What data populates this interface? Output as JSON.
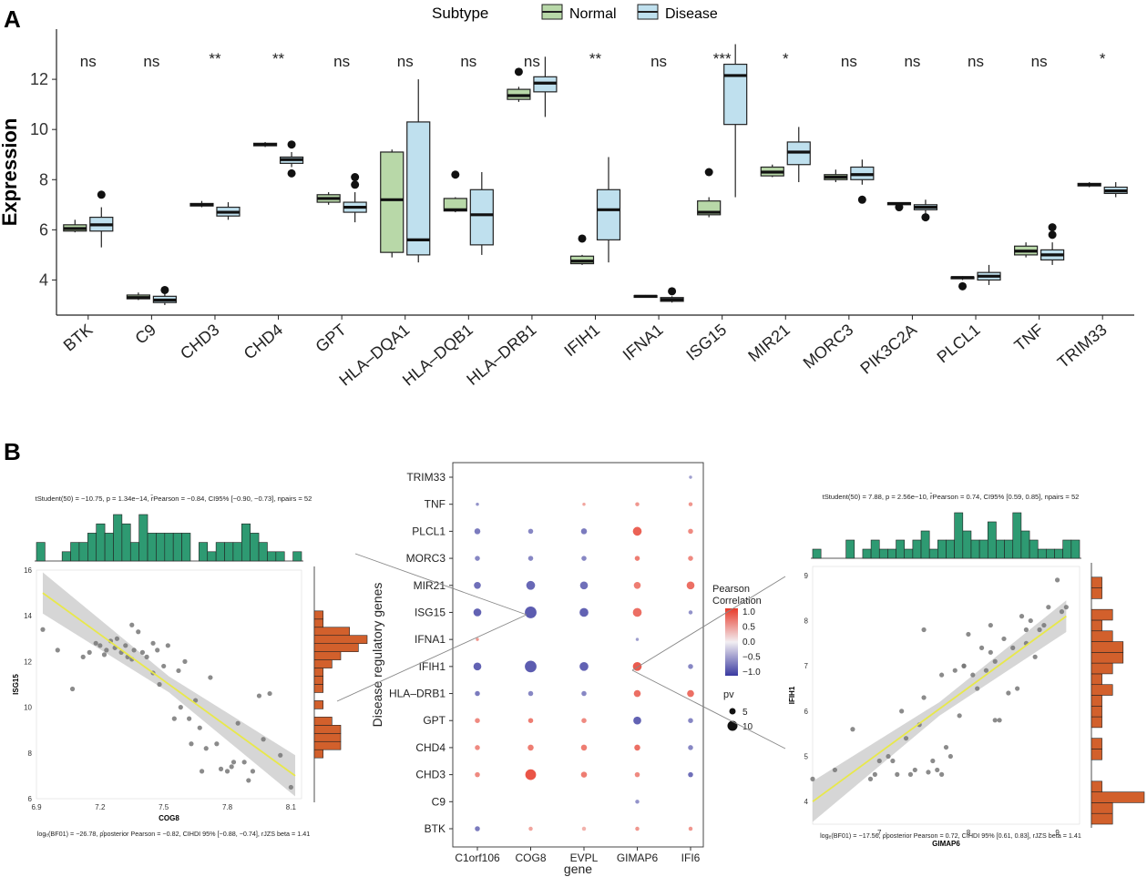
{
  "panel_labels": [
    "A",
    "B"
  ],
  "colors": {
    "normal": "#b8d8a8",
    "disease": "#bfe0ee",
    "hist_top": "#2e9a72",
    "hist_side": "#d2602c",
    "fit_line": "#e8e84a",
    "ci_band": "#c8c8c8",
    "points": "#777777",
    "pos_corr": "#e83a2a",
    "neg_corr": "#4a4aa8"
  },
  "chart_data": [
    {
      "type": "box",
      "panel": "A",
      "legend_title": "Subtype",
      "legend_entries": [
        "Normal",
        "Disease"
      ],
      "ylabel": "Expression",
      "ylim": [
        2.6,
        14
      ],
      "yticks": [
        4,
        6,
        8,
        10,
        12
      ],
      "genes": [
        "BTK",
        "C9",
        "CHD3",
        "CHD4",
        "GPT",
        "HLA–DQA1",
        "HLA–DQB1",
        "HLA–DRB1",
        "IFIH1",
        "IFNA1",
        "ISG15",
        "MIR21",
        "MORC3",
        "PIK3C2A",
        "PLCL1",
        "TNF",
        "TRIM33"
      ],
      "significance": [
        "ns",
        "ns",
        "**",
        "**",
        "ns",
        "ns",
        "ns",
        "ns",
        "**",
        "ns",
        "***",
        "*",
        "ns",
        "ns",
        "ns",
        "ns",
        "*"
      ],
      "series": [
        {
          "name": "Normal",
          "boxes": [
            {
              "min": 5.9,
              "q1": 5.95,
              "med": 6.05,
              "q3": 6.2,
              "max": 6.4,
              "out": []
            },
            {
              "min": 3.2,
              "q1": 3.25,
              "med": 3.3,
              "q3": 3.4,
              "max": 3.5,
              "out": []
            },
            {
              "min": 6.9,
              "q1": 6.95,
              "med": 7.0,
              "q3": 7.05,
              "max": 7.15,
              "out": []
            },
            {
              "min": 9.3,
              "q1": 9.35,
              "med": 9.4,
              "q3": 9.45,
              "max": 9.5,
              "out": []
            },
            {
              "min": 7.0,
              "q1": 7.1,
              "med": 7.25,
              "q3": 7.4,
              "max": 7.5,
              "out": []
            },
            {
              "min": 4.9,
              "q1": 5.1,
              "med": 7.2,
              "q3": 9.1,
              "max": 9.2,
              "out": []
            },
            {
              "min": 6.7,
              "q1": 6.75,
              "med": 6.8,
              "q3": 7.25,
              "max": 7.3,
              "out": [
                8.2
              ]
            },
            {
              "min": 11.1,
              "q1": 11.2,
              "med": 11.35,
              "q3": 11.6,
              "max": 11.7,
              "out": [
                12.3
              ]
            },
            {
              "min": 4.6,
              "q1": 4.65,
              "med": 4.75,
              "q3": 4.95,
              "max": 5.0,
              "out": [
                5.65
              ]
            },
            {
              "min": 3.3,
              "q1": 3.32,
              "med": 3.35,
              "q3": 3.38,
              "max": 3.4,
              "out": []
            },
            {
              "min": 6.5,
              "q1": 6.6,
              "med": 6.7,
              "q3": 7.15,
              "max": 7.3,
              "out": [
                8.3
              ]
            },
            {
              "min": 8.1,
              "q1": 8.15,
              "med": 8.3,
              "q3": 8.5,
              "max": 8.6,
              "out": []
            },
            {
              "min": 7.9,
              "q1": 8.0,
              "med": 8.1,
              "q3": 8.2,
              "max": 8.4,
              "out": []
            },
            {
              "min": 6.95,
              "q1": 7.0,
              "med": 7.05,
              "q3": 7.08,
              "max": 7.1,
              "out": [
                6.9
              ]
            },
            {
              "min": 4.0,
              "q1": 4.05,
              "med": 4.1,
              "q3": 4.12,
              "max": 4.15,
              "out": [
                3.75
              ]
            },
            {
              "min": 4.9,
              "q1": 5.0,
              "med": 5.15,
              "q3": 5.35,
              "max": 5.5,
              "out": []
            },
            {
              "min": 7.7,
              "q1": 7.75,
              "med": 7.8,
              "q3": 7.85,
              "max": 7.9,
              "out": []
            }
          ]
        },
        {
          "name": "Disease",
          "boxes": [
            {
              "min": 5.3,
              "q1": 5.95,
              "med": 6.2,
              "q3": 6.5,
              "max": 6.9,
              "out": [
                7.4
              ]
            },
            {
              "min": 3.0,
              "q1": 3.1,
              "med": 3.2,
              "q3": 3.35,
              "max": 3.45,
              "out": [
                3.6
              ]
            },
            {
              "min": 6.4,
              "q1": 6.55,
              "med": 6.7,
              "q3": 6.9,
              "max": 7.1,
              "out": []
            },
            {
              "min": 8.5,
              "q1": 8.65,
              "med": 8.8,
              "q3": 8.9,
              "max": 9.1,
              "out": [
                9.4,
                8.25
              ]
            },
            {
              "min": 6.3,
              "q1": 6.7,
              "med": 6.9,
              "q3": 7.1,
              "max": 7.5,
              "out": [
                8.1,
                7.8
              ]
            },
            {
              "min": 4.7,
              "q1": 5.0,
              "med": 5.6,
              "q3": 10.3,
              "max": 12.0,
              "out": []
            },
            {
              "min": 5.0,
              "q1": 5.4,
              "med": 6.6,
              "q3": 7.6,
              "max": 8.3,
              "out": []
            },
            {
              "min": 10.5,
              "q1": 11.5,
              "med": 11.85,
              "q3": 12.1,
              "max": 12.9,
              "out": []
            },
            {
              "min": 4.7,
              "q1": 5.6,
              "med": 6.8,
              "q3": 7.6,
              "max": 8.9,
              "out": []
            },
            {
              "min": 3.1,
              "q1": 3.15,
              "med": 3.22,
              "q3": 3.3,
              "max": 3.35,
              "out": [
                3.55
              ]
            },
            {
              "min": 7.3,
              "q1": 10.2,
              "med": 12.15,
              "q3": 12.6,
              "max": 13.4,
              "out": []
            },
            {
              "min": 7.9,
              "q1": 8.6,
              "med": 9.1,
              "q3": 9.5,
              "max": 10.1,
              "out": []
            },
            {
              "min": 7.8,
              "q1": 8.0,
              "med": 8.2,
              "q3": 8.5,
              "max": 8.8,
              "out": [
                7.2
              ]
            },
            {
              "min": 6.6,
              "q1": 6.8,
              "med": 6.9,
              "q3": 7.0,
              "max": 7.2,
              "out": [
                6.5
              ]
            },
            {
              "min": 3.8,
              "q1": 4.0,
              "med": 4.15,
              "q3": 4.3,
              "max": 4.6,
              "out": []
            },
            {
              "min": 4.6,
              "q1": 4.8,
              "med": 5.0,
              "q3": 5.2,
              "max": 5.5,
              "out": [
                6.1,
                5.8
              ]
            },
            {
              "min": 7.3,
              "q1": 7.45,
              "med": 7.55,
              "q3": 7.7,
              "max": 7.9,
              "out": []
            }
          ]
        }
      ]
    },
    {
      "type": "scatter",
      "panel": "B-left",
      "subtitle": "tStudent(50) = −10.75, p = 1.34e−14, r̂Pearson = −0.84, CI95% [−0.90, −0.73], npairs = 52",
      "footer": "logₑ(BF01) = −26.78, ρ̂posterior Pearson = −0.82, CIHDI 95% [−0.88, −0.74], rJZS beta = 1.41",
      "xlabel": "COG8",
      "ylabel": "ISG15",
      "xlim": [
        6.9,
        8.15
      ],
      "ylim": [
        6,
        16
      ],
      "xticks": [
        "6.9",
        "7.2",
        "7.5",
        "7.8",
        "8.1"
      ],
      "yticks": [
        "6",
        "8",
        "10",
        "12",
        "14",
        "16"
      ],
      "fit": {
        "x": [
          6.93,
          8.12
        ],
        "y": [
          15.0,
          7.0
        ]
      },
      "ci_half_width": [
        0.9,
        0.35,
        0.9
      ],
      "points_x": [
        6.93,
        7.0,
        7.07,
        7.12,
        7.15,
        7.18,
        7.2,
        7.22,
        7.23,
        7.25,
        7.27,
        7.28,
        7.3,
        7.32,
        7.33,
        7.35,
        7.36,
        7.38,
        7.4,
        7.42,
        7.45,
        7.47,
        7.48,
        7.5,
        7.52,
        7.55,
        7.57,
        7.58,
        7.6,
        7.63,
        7.65,
        7.67,
        7.68,
        7.7,
        7.72,
        7.75,
        7.77,
        7.8,
        7.82,
        7.83,
        7.85,
        7.88,
        7.9,
        7.92,
        7.95,
        7.97,
        8.0,
        8.05,
        8.1,
        7.45,
        7.62,
        7.35
      ],
      "points_y": [
        13.4,
        12.5,
        10.8,
        12.2,
        12.4,
        12.8,
        12.7,
        12.3,
        12.5,
        12.9,
        12.6,
        13.0,
        12.4,
        12.7,
        12.2,
        12.1,
        12.5,
        13.3,
        12.4,
        12.2,
        11.5,
        12.5,
        11.0,
        11.8,
        12.7,
        9.5,
        11.6,
        10.0,
        12.0,
        8.4,
        10.3,
        9.1,
        7.2,
        8.2,
        11.3,
        8.4,
        7.3,
        7.2,
        7.4,
        7.6,
        9.3,
        7.6,
        6.8,
        7.2,
        10.5,
        8.6,
        10.6,
        7.9,
        6.5,
        12.8,
        9.5,
        13.6
      ],
      "hist_top": [
        2,
        0,
        0,
        1,
        2,
        2,
        3,
        4,
        3,
        5,
        4,
        2,
        5,
        3,
        3,
        3,
        3,
        3,
        0,
        2,
        1,
        2,
        2,
        2,
        4,
        3,
        2,
        1,
        1,
        0,
        1
      ],
      "hist_side": [
        0,
        0,
        0,
        0,
        0,
        1,
        3,
        3,
        3,
        2,
        0,
        1,
        0,
        1,
        1,
        1,
        2,
        3,
        5,
        6,
        4,
        1,
        1,
        0,
        0,
        0,
        0,
        0
      ]
    },
    {
      "type": "dot-matrix",
      "panel": "B-middle",
      "xlabel": "gene",
      "ylabel": "Disease regulatory genes",
      "x": [
        "C1orf106",
        "COG8",
        "EVPL",
        "GIMAP6",
        "IFI6"
      ],
      "y": [
        "BTK",
        "C9",
        "CHD3",
        "CHD4",
        "GPT",
        "HLA–DRB1",
        "IFIH1",
        "IFNA1",
        "ISG15",
        "MIR21",
        "MORC3",
        "PLCL1",
        "TNF",
        "TRIM33"
      ],
      "corr": [
        [
          -0.6,
          0.2,
          0.1,
          0.3,
          0.3
        ],
        [
          null,
          null,
          null,
          -0.4,
          null
        ],
        [
          0.4,
          0.8,
          0.5,
          0.4,
          -0.7
        ],
        [
          0.4,
          0.5,
          0.5,
          0.6,
          -0.5
        ],
        [
          0.4,
          0.5,
          0.4,
          -0.8,
          -0.5
        ],
        [
          -0.6,
          -0.5,
          -0.5,
          0.6,
          0.6
        ],
        [
          -0.8,
          -0.85,
          -0.8,
          0.75,
          -0.5
        ],
        [
          0.3,
          null,
          null,
          -0.3,
          null
        ],
        [
          -0.8,
          -0.85,
          -0.8,
          0.6,
          -0.4
        ],
        [
          -0.7,
          -0.75,
          -0.7,
          0.5,
          0.6
        ],
        [
          -0.5,
          -0.5,
          -0.5,
          0.5,
          0.4
        ],
        [
          -0.6,
          -0.5,
          -0.6,
          0.7,
          0.4
        ],
        [
          -0.4,
          null,
          0.2,
          0.3,
          0.3
        ],
        [
          null,
          null,
          null,
          null,
          -0.3
        ]
      ],
      "pv": [
        [
          3,
          2,
          2,
          2,
          2
        ],
        [
          null,
          null,
          null,
          2,
          null
        ],
        [
          3,
          9,
          4,
          3,
          3
        ],
        [
          3,
          4,
          4,
          4,
          3
        ],
        [
          3,
          3,
          3,
          6,
          3
        ],
        [
          3,
          3,
          3,
          5,
          5
        ],
        [
          6,
          10,
          7,
          7,
          3
        ],
        [
          1,
          null,
          null,
          1,
          null
        ],
        [
          6,
          10,
          7,
          7,
          2
        ],
        [
          5,
          7,
          6,
          5,
          6
        ],
        [
          3,
          3,
          3,
          3,
          3
        ],
        [
          4,
          3,
          4,
          7,
          3
        ],
        [
          1,
          null,
          1,
          2,
          2
        ],
        [
          null,
          null,
          null,
          null,
          1
        ]
      ],
      "legend_title": "Pearson Correlation",
      "legend_ticks": [
        "1.0",
        "0.5",
        "0.0",
        "−0.5",
        "−1.0"
      ],
      "size_title": "pv",
      "size_ticks": [
        "5",
        "10"
      ]
    },
    {
      "type": "scatter",
      "panel": "B-right",
      "subtitle": "tStudent(50) = 7.88, p = 2.56e−10, r̂Pearson = 0.74, CI95% [0.59, 0.85], npairs = 52",
      "footer": "logₑ(BF01) = −17.56, ρ̂posterior Pearson = 0.72, CIHDI 95% [0.61, 0.83], rJZS beta = 1.41",
      "xlabel": "GIMAP6",
      "ylabel": "IFIH1",
      "xlim": [
        6.25,
        9.25
      ],
      "ylim": [
        3.5,
        9.2
      ],
      "xticks": [
        "7",
        "8",
        "9"
      ],
      "yticks": [
        "4",
        "5",
        "6",
        "7",
        "8",
        "9"
      ],
      "fit": {
        "x": [
          6.25,
          9.1
        ],
        "y": [
          4.0,
          8.1
        ]
      },
      "ci_half_width": [
        0.45,
        0.15,
        0.35
      ],
      "points_x": [
        6.25,
        6.5,
        6.7,
        6.95,
        7.0,
        7.1,
        7.2,
        7.3,
        7.35,
        7.4,
        7.45,
        7.5,
        7.6,
        7.65,
        7.7,
        7.75,
        7.8,
        7.85,
        7.9,
        7.95,
        8.0,
        8.05,
        8.1,
        8.15,
        8.2,
        8.25,
        8.3,
        8.35,
        8.4,
        8.45,
        8.5,
        8.55,
        8.6,
        8.65,
        8.7,
        8.75,
        8.8,
        8.9,
        9.0,
        9.05,
        9.1,
        7.25,
        7.5,
        7.7,
        7.95,
        8.25,
        8.3,
        8.65,
        8.85,
        7.15,
        7.55,
        6.9
      ],
      "points_y": [
        4.5,
        4.7,
        5.6,
        4.6,
        4.9,
        5.0,
        4.6,
        5.4,
        4.6,
        4.7,
        5.7,
        6.3,
        4.9,
        4.7,
        4.6,
        5.2,
        5.0,
        6.9,
        5.9,
        7.0,
        7.7,
        6.8,
        6.5,
        7.4,
        6.9,
        7.3,
        7.1,
        5.8,
        7.6,
        6.4,
        7.4,
        6.5,
        8.1,
        7.5,
        8.0,
        7.2,
        7.8,
        8.3,
        8.9,
        8.2,
        8.3,
        6.0,
        7.8,
        6.8,
        7.0,
        7.9,
        5.8,
        7.8,
        7.9,
        4.9,
        4.65,
        4.5
      ],
      "hist_top": [
        1,
        0,
        0,
        0,
        2,
        0,
        1,
        2,
        1,
        1,
        2,
        1,
        2,
        3,
        1,
        2,
        2,
        5,
        3,
        2,
        2,
        4,
        2,
        2,
        5,
        3,
        2,
        1,
        1,
        1,
        2,
        2
      ],
      "hist_side": [
        2,
        2,
        5,
        1,
        0,
        0,
        1,
        1,
        0,
        1,
        1,
        1,
        2,
        1,
        2,
        3,
        3,
        2,
        1,
        2,
        0,
        1,
        1,
        0
      ]
    }
  ]
}
